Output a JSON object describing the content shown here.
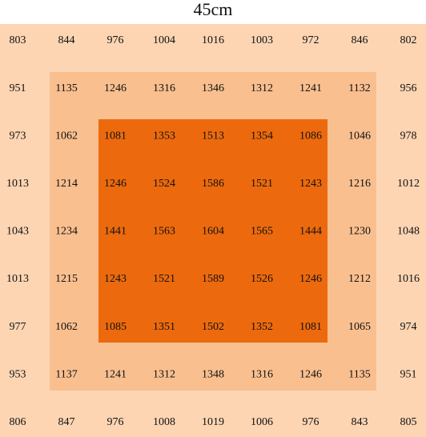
{
  "title": "45cm",
  "table": {
    "rows": [
      [
        803,
        844,
        976,
        1004,
        1016,
        1003,
        972,
        846,
        802
      ],
      [
        951,
        1135,
        1246,
        1316,
        1346,
        1312,
        1241,
        1132,
        956
      ],
      [
        973,
        1062,
        1081,
        1353,
        1513,
        1354,
        1086,
        1046,
        978
      ],
      [
        1013,
        1214,
        1246,
        1524,
        1586,
        1521,
        1243,
        1216,
        1012
      ],
      [
        1043,
        1234,
        1441,
        1563,
        1604,
        1565,
        1444,
        1230,
        1048
      ],
      [
        1013,
        1215,
        1243,
        1521,
        1589,
        1526,
        1246,
        1212,
        1016
      ],
      [
        977,
        1062,
        1085,
        1351,
        1502,
        1352,
        1081,
        1065,
        974
      ],
      [
        953,
        1137,
        1241,
        1312,
        1348,
        1316,
        1246,
        1135,
        951
      ],
      [
        806,
        847,
        976,
        1008,
        1019,
        1006,
        976,
        843,
        805
      ]
    ]
  }
}
